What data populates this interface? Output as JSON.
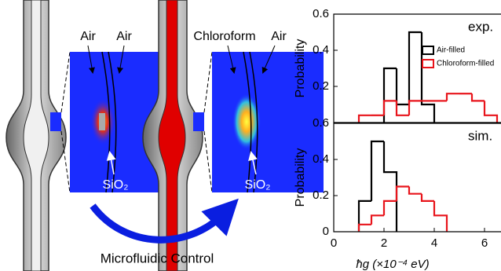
{
  "schematic": {
    "air_panel": {
      "labels": [
        "Air",
        "Air",
        "SiO₂"
      ]
    },
    "chloroform_panel": {
      "labels": [
        "Chloroform",
        "Air",
        "SiO₂"
      ]
    },
    "caption": "Microfluidic Control"
  },
  "chart_data": [
    {
      "type": "histogram",
      "annotation": "exp.",
      "ylabel": "Probability",
      "xlim": [
        0,
        7
      ],
      "ylim": [
        0,
        0.6
      ],
      "yticks": [
        0.2,
        0.4,
        0.6
      ],
      "legend": "upper right",
      "series": [
        {
          "name": "Air-filled",
          "color": "#000000",
          "bins": [
            2,
            2.5,
            3,
            3.5,
            4
          ],
          "values": [
            0.3,
            0.1,
            0.5,
            0.1
          ]
        },
        {
          "name": "Chloroform-filled",
          "color": "#e8141b",
          "bins": [
            1,
            1.5,
            2,
            2.5,
            3,
            3.5,
            4,
            4.5,
            5,
            5.5,
            6,
            6.5
          ],
          "values": [
            0.04,
            0.04,
            0.12,
            0.04,
            0.12,
            0.12,
            0.12,
            0.16,
            0.16,
            0.12,
            0.04
          ]
        }
      ]
    },
    {
      "type": "histogram",
      "annotation": "sim.",
      "ylabel": "Probability",
      "xlabel": "ħg (×10⁻⁴ eV)",
      "xlim": [
        0,
        7
      ],
      "ylim": [
        0,
        0.6
      ],
      "xticks": [
        0,
        2,
        4,
        6
      ],
      "yticks": [
        0,
        0.2,
        0.4,
        0.6
      ],
      "series": [
        {
          "color": "#000000",
          "bins": [
            1,
            1.5,
            2,
            2.5
          ],
          "values": [
            0.17,
            0.5,
            0.33
          ]
        },
        {
          "color": "#e8141b",
          "bins": [
            1,
            1.5,
            2,
            2.5,
            3,
            3.5,
            4,
            4.5
          ],
          "values": [
            0.04,
            0.09,
            0.17,
            0.25,
            0.21,
            0.17,
            0.09
          ]
        }
      ]
    }
  ]
}
